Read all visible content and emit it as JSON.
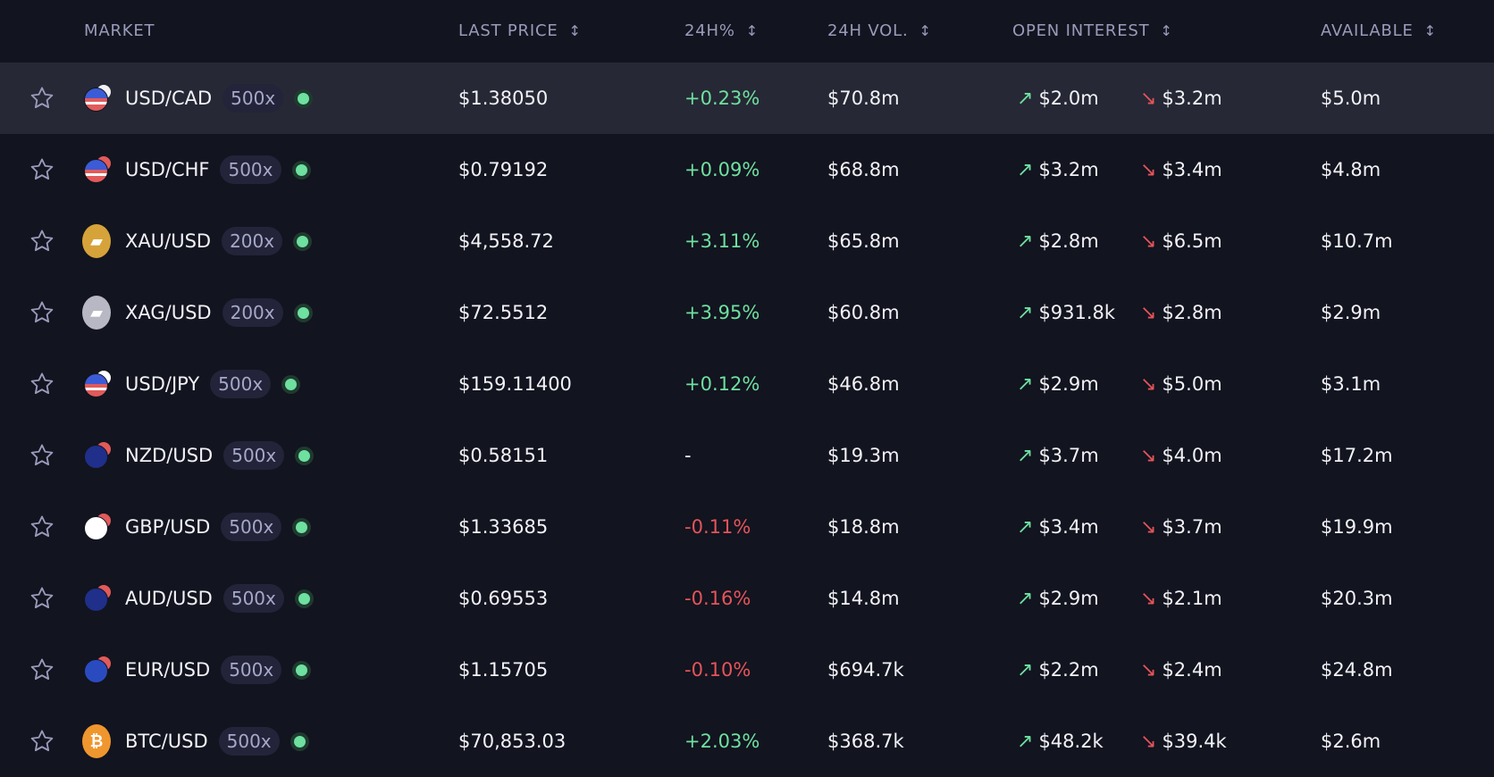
{
  "headers": {
    "market": "MARKET",
    "last_price": "LAST PRICE",
    "change": "24H%",
    "volume": "24H VOL.",
    "open_interest": "OPEN INTEREST",
    "available": "AVAILABLE",
    "sort_icon": "↕"
  },
  "colors": {
    "positive": "#6ee0a0",
    "negative": "#e5545a",
    "background": "#12141f",
    "highlight": "#262835"
  },
  "rows": [
    {
      "market": "USD/CAD",
      "leverage": "500x",
      "icon": "us-ca-flags",
      "price": "$1.38050",
      "change": "+0.23%",
      "dir": "pos",
      "volume": "$70.8m",
      "oi_long": "$2.0m",
      "oi_short": "$3.2m",
      "available": "$5.0m"
    },
    {
      "market": "USD/CHF",
      "leverage": "500x",
      "icon": "us-ch-flags",
      "price": "$0.79192",
      "change": "+0.09%",
      "dir": "pos",
      "volume": "$68.8m",
      "oi_long": "$3.2m",
      "oi_short": "$3.4m",
      "available": "$4.8m"
    },
    {
      "market": "XAU/USD",
      "leverage": "200x",
      "icon": "gold-icon",
      "price": "$4,558.72",
      "change": "+3.11%",
      "dir": "pos",
      "volume": "$65.8m",
      "oi_long": "$2.8m",
      "oi_short": "$6.5m",
      "available": "$10.7m"
    },
    {
      "market": "XAG/USD",
      "leverage": "200x",
      "icon": "silver-icon",
      "price": "$72.5512",
      "change": "+3.95%",
      "dir": "pos",
      "volume": "$60.8m",
      "oi_long": "$931.8k",
      "oi_short": "$2.8m",
      "available": "$2.9m"
    },
    {
      "market": "USD/JPY",
      "leverage": "500x",
      "icon": "us-jp-flags",
      "price": "$159.11400",
      "change": "+0.12%",
      "dir": "pos",
      "volume": "$46.8m",
      "oi_long": "$2.9m",
      "oi_short": "$5.0m",
      "available": "$3.1m"
    },
    {
      "market": "NZD/USD",
      "leverage": "500x",
      "icon": "nz-us-flags",
      "price": "$0.58151",
      "change": "-",
      "dir": "flat",
      "volume": "$19.3m",
      "oi_long": "$3.7m",
      "oi_short": "$4.0m",
      "available": "$17.2m"
    },
    {
      "market": "GBP/USD",
      "leverage": "500x",
      "icon": "gb-us-flags",
      "price": "$1.33685",
      "change": "-0.11%",
      "dir": "neg",
      "volume": "$18.8m",
      "oi_long": "$3.4m",
      "oi_short": "$3.7m",
      "available": "$19.9m"
    },
    {
      "market": "AUD/USD",
      "leverage": "500x",
      "icon": "au-us-flags",
      "price": "$0.69553",
      "change": "-0.16%",
      "dir": "neg",
      "volume": "$14.8m",
      "oi_long": "$2.9m",
      "oi_short": "$2.1m",
      "available": "$20.3m"
    },
    {
      "market": "EUR/USD",
      "leverage": "500x",
      "icon": "eu-us-flags",
      "price": "$1.15705",
      "change": "-0.10%",
      "dir": "neg",
      "volume": "$694.7k",
      "oi_long": "$2.2m",
      "oi_short": "$2.4m",
      "available": "$24.8m"
    },
    {
      "market": "BTC/USD",
      "leverage": "500x",
      "icon": "bitcoin-icon",
      "price": "$70,853.03",
      "change": "+2.03%",
      "dir": "pos",
      "volume": "$368.7k",
      "oi_long": "$48.2k",
      "oi_short": "$39.4k",
      "available": "$2.6m"
    }
  ]
}
